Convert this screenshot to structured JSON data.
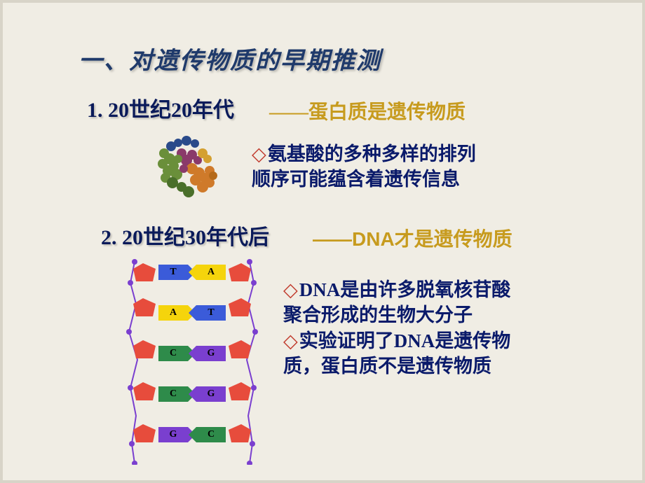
{
  "title": "一、对遗传物质的早期推测",
  "section1": {
    "label": "1.  20世纪20年代",
    "hypothesis": "——蛋白质是遗传物质",
    "desc_line1": "氨基酸的多种多样的排列",
    "desc_line2": "顺序可能蕴含着遗传信息"
  },
  "section2": {
    "label": "2. 20世纪30年代后",
    "hypothesis": "——DNA才是遗传物质",
    "desc_line1": "DNA是由许多脱氧核苷酸",
    "desc_line2": "聚合形成的生物大分子",
    "desc_line3": "实验证明了DNA是遗传物",
    "desc_line4": "质，蛋白质不是遗传物质"
  },
  "dna": {
    "pairs": [
      {
        "l": "T",
        "lcol": "blue",
        "r": "A",
        "rcol": "yellow"
      },
      {
        "l": "A",
        "lcol": "yellow",
        "r": "T",
        "rcol": "blue"
      },
      {
        "l": "C",
        "lcol": "green",
        "r": "G",
        "rcol": "purple"
      },
      {
        "l": "C",
        "lcol": "green",
        "r": "G",
        "rcol": "purple"
      },
      {
        "l": "G",
        "lcol": "purple",
        "r": "C",
        "rcol": "green"
      }
    ]
  },
  "colors": {
    "title": "#1f3a6b",
    "bodytext": "#0a1a6a",
    "gold": "#c79b1e",
    "diamond": "#c0392b",
    "bg": "#f0ede4"
  }
}
